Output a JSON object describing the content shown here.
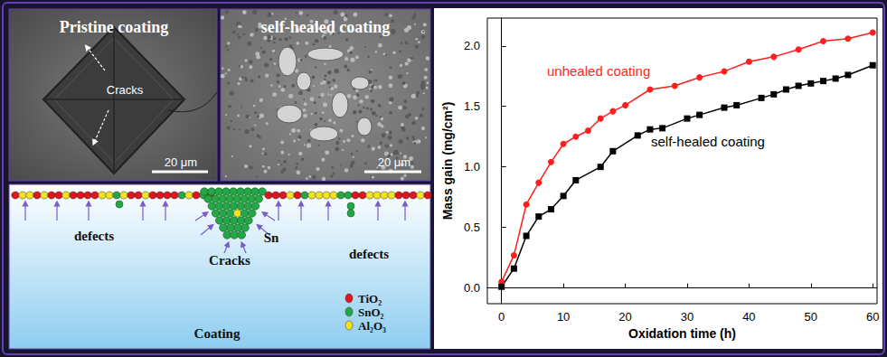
{
  "chart_data": {
    "type": "line",
    "xlabel": "Oxidation time (h)",
    "ylabel": "Mass gain (mg/cm²)",
    "xlim": [
      -2.3,
      60.7
    ],
    "xticks": [
      0,
      10,
      20,
      30,
      40,
      50,
      60
    ],
    "ylim": [
      -0.13,
      2.23
    ],
    "yticks": [
      {
        "value": 0,
        "label": "0.0"
      },
      {
        "value": 0.5,
        "label": "0.5"
      },
      {
        "value": 1,
        "label": "1.0"
      },
      {
        "value": 1.5,
        "label": "1.5"
      },
      {
        "value": 2,
        "label": "2.0"
      }
    ],
    "grid": false,
    "series": [
      {
        "name": "unhealed coating",
        "color": "#ff1f1f",
        "marker": "circle",
        "x": [
          0,
          2,
          4,
          6,
          8,
          10,
          12,
          14,
          16,
          18,
          20,
          24,
          28,
          32,
          36,
          40,
          44,
          48,
          52,
          56,
          60
        ],
        "values": [
          0.05,
          0.27,
          0.69,
          0.87,
          1.04,
          1.19,
          1.25,
          1.3,
          1.4,
          1.46,
          1.51,
          1.64,
          1.67,
          1.74,
          1.79,
          1.87,
          1.91,
          1.97,
          2.04,
          2.06,
          2.11
        ]
      },
      {
        "name": "self-healed coating",
        "color": "#000000",
        "marker": "square",
        "x": [
          0,
          2,
          4,
          6,
          8,
          10,
          12,
          16,
          18,
          22,
          24,
          26,
          30,
          32,
          36,
          38,
          42,
          44,
          46,
          48,
          50,
          52,
          54,
          56,
          60
        ],
        "values": [
          0.01,
          0.16,
          0.43,
          0.59,
          0.65,
          0.76,
          0.89,
          1.0,
          1.13,
          1.26,
          1.31,
          1.32,
          1.4,
          1.43,
          1.49,
          1.51,
          1.57,
          1.6,
          1.64,
          1.67,
          1.69,
          1.71,
          1.73,
          1.76,
          1.84
        ]
      }
    ]
  },
  "images": [
    {
      "title": "Pristine coating",
      "annotation": "Cracks",
      "scale_bar": "20 μm"
    },
    {
      "title": "self-healed coating",
      "scale_bar": "20 μm"
    }
  ],
  "schematic": {
    "labels": {
      "left_defects": "defects",
      "cracks": "Cracks",
      "sn": "Sn",
      "right_defects": "defects"
    },
    "substrate": "Coating",
    "legend": [
      {
        "label": "TiO₂",
        "color": "#e3141c"
      },
      {
        "label": "SnO₂",
        "color": "#22a845"
      },
      {
        "label": "Al₂O₃",
        "color": "#f2e31a"
      }
    ]
  }
}
